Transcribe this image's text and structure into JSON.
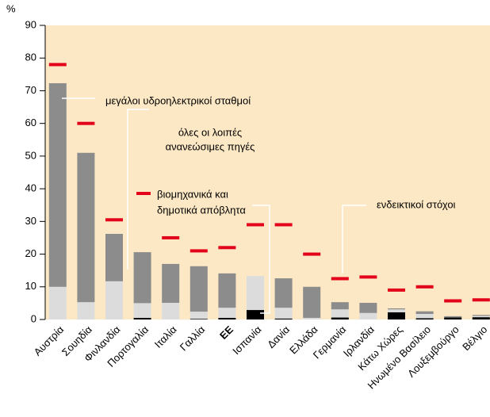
{
  "chart_data": {
    "type": "stacked_bar_target",
    "ylabel": "%",
    "categories": [
      "Αυστρία",
      "Σουηδία",
      "Φινλανδία",
      "Πορτογαλία",
      "Ιταλία",
      "Γαλλία",
      "ΕΕ",
      "Ισπανία",
      "Δανία",
      "Ελλάδα",
      "Γερμανία",
      "Ιρλανδία",
      "Κάτω Χώρες",
      "Ηνωμένο Βασίλειο",
      "Λουξεμβούργο",
      "Βέλγιο"
    ],
    "series": [
      {
        "label_lines": [
          "βιομηχανικά και",
          "δημοτικά απόβλητα"
        ],
        "color": "#000000",
        "values": [
          0,
          0,
          0,
          0.5,
          0,
          0.2,
          0.5,
          2.9,
          0.3,
          0,
          0.6,
          0,
          2.2,
          0.4,
          0.6,
          0.7
        ]
      },
      {
        "label_lines": [
          "όλες οι λοιπές",
          "ανανεώσιμες πηγές"
        ],
        "color": "#dcdcdc",
        "values": [
          10,
          5.3,
          11.7,
          4.5,
          5.1,
          2.2,
          3.1,
          10.4,
          3.3,
          0.5,
          2.5,
          2,
          0.9,
          1.3,
          0,
          0.4
        ]
      },
      {
        "label_lines": [
          "μεγάλοι υδροηλεκτρικοί σταθμοί"
        ],
        "color": "#8c8c8c",
        "values": [
          62.3,
          45.7,
          14.5,
          15.6,
          11.9,
          13.9,
          10.5,
          0,
          9,
          9.5,
          2.2,
          3.1,
          0.3,
          0.8,
          0.4,
          0.3
        ]
      }
    ],
    "targets": {
      "label_lines": [
        "ενδεικτικοί στόχοι"
      ],
      "color": "#e2001a",
      "values": [
        78,
        60,
        30.5,
        null,
        25,
        21,
        22,
        29,
        29,
        20,
        12.5,
        13,
        9,
        10,
        5.7,
        6
      ]
    },
    "ylim": [
      0,
      90
    ],
    "yticks": [
      0,
      10,
      20,
      30,
      40,
      50,
      60,
      70,
      80,
      90
    ],
    "background": "#fce8c4"
  }
}
